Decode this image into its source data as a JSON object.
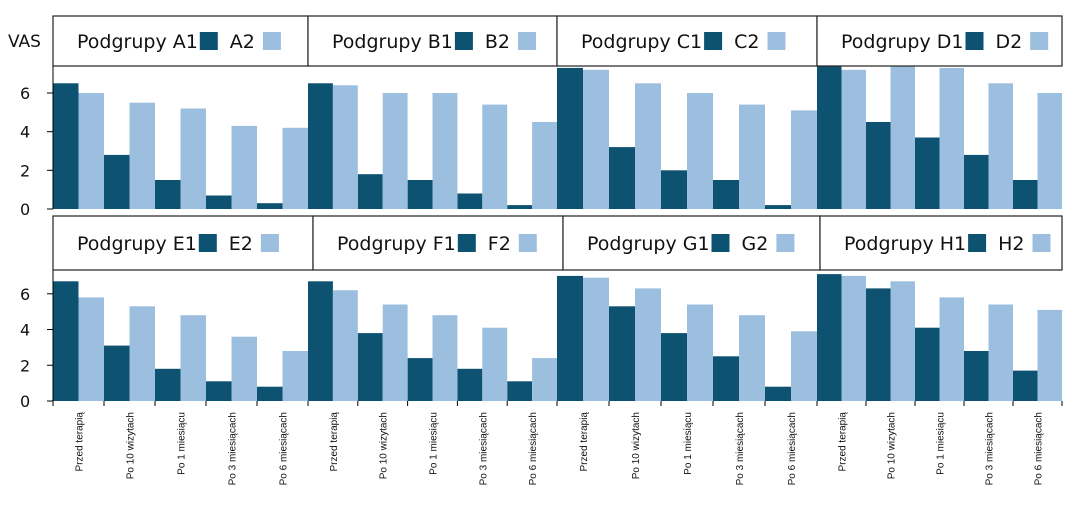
{
  "colors": {
    "dark": "#0d5270",
    "light": "#9cbfdf",
    "axis": "#000000"
  },
  "chart_data": {
    "type": "bar",
    "ylabel": "VAS",
    "yticks": [
      0,
      2,
      4,
      6
    ],
    "ylim": [
      0,
      7.5
    ],
    "categories": [
      "Przed terapią",
      "Po 10 wizytach",
      "Po 1 miesiącu",
      "Po 3 miesiącach",
      "Po 6 miesiącach"
    ],
    "panels": [
      {
        "legend_title": "Podgrupy A1",
        "series": [
          {
            "name": "A1",
            "values": [
              6.5,
              2.8,
              1.5,
              0.7,
              0.3
            ]
          },
          {
            "name": "A2",
            "values": [
              6.0,
              5.5,
              5.2,
              4.3,
              4.2
            ]
          }
        ]
      },
      {
        "legend_title": "Podgrupy B1",
        "series": [
          {
            "name": "B1",
            "values": [
              6.5,
              1.8,
              1.5,
              0.8,
              0.2
            ]
          },
          {
            "name": "B2",
            "values": [
              6.4,
              6.0,
              6.0,
              5.4,
              4.5
            ]
          }
        ]
      },
      {
        "legend_title": "Podgrupy C1",
        "series": [
          {
            "name": "C1",
            "values": [
              7.3,
              3.2,
              2.0,
              1.5,
              0.2
            ]
          },
          {
            "name": "C2",
            "values": [
              7.2,
              6.5,
              6.0,
              5.4,
              5.1
            ]
          }
        ]
      },
      {
        "legend_title": "Podgrupy D1",
        "series": [
          {
            "name": "D1",
            "values": [
              7.8,
              4.5,
              3.7,
              2.8,
              1.5
            ]
          },
          {
            "name": "D2",
            "values": [
              7.2,
              7.4,
              7.3,
              6.5,
              6.0
            ]
          }
        ]
      },
      {
        "legend_title": "Podgrupy E1",
        "series": [
          {
            "name": "E1",
            "values": [
              6.7,
              3.1,
              1.8,
              1.1,
              0.8
            ]
          },
          {
            "name": "E2",
            "values": [
              5.8,
              5.3,
              4.8,
              3.6,
              2.8
            ]
          }
        ]
      },
      {
        "legend_title": "Podgrupy F1",
        "series": [
          {
            "name": "F1",
            "values": [
              6.7,
              3.8,
              2.4,
              1.8,
              1.1
            ]
          },
          {
            "name": "F2",
            "values": [
              6.2,
              5.4,
              4.8,
              4.1,
              2.4
            ]
          }
        ]
      },
      {
        "legend_title": "Podgrupy G1",
        "series": [
          {
            "name": "G1",
            "values": [
              7.0,
              5.3,
              3.8,
              2.5,
              0.8
            ]
          },
          {
            "name": "G2",
            "values": [
              6.9,
              6.3,
              5.4,
              4.8,
              3.9
            ]
          }
        ]
      },
      {
        "legend_title": "Podgrupy H1",
        "series": [
          {
            "name": "H1",
            "values": [
              7.1,
              6.3,
              4.1,
              2.8,
              1.7
            ]
          },
          {
            "name": "H2",
            "values": [
              7.0,
              6.7,
              5.8,
              5.4,
              5.1
            ]
          }
        ]
      }
    ]
  }
}
